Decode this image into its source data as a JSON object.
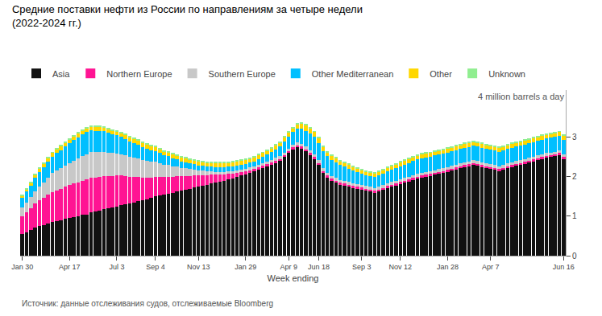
{
  "chart_data": {
    "type": "bar",
    "stacked": true,
    "title": "Средние поставки нефти из России по направлениям за четыре недели",
    "subtitle": "(2022-2024 гг.)",
    "xlabel": "Week ending",
    "annotations": [
      "4 million barrels a day",
      "Источник: данные отслеживания судов, отслеживаемые Bloomberg"
    ],
    "categories": [
      "Jan 30",
      null,
      null,
      null,
      null,
      null,
      null,
      null,
      null,
      null,
      null,
      "Apr 17",
      null,
      null,
      null,
      null,
      null,
      null,
      null,
      null,
      null,
      null,
      "Jul 3",
      null,
      null,
      null,
      null,
      null,
      null,
      null,
      null,
      "Sep 4",
      null,
      null,
      null,
      null,
      null,
      null,
      null,
      null,
      null,
      "Nov 13",
      null,
      null,
      null,
      null,
      null,
      null,
      null,
      null,
      null,
      null,
      "Jan 29",
      null,
      null,
      null,
      null,
      null,
      null,
      null,
      null,
      null,
      "Apr 9",
      null,
      null,
      null,
      null,
      null,
      null,
      "Jun 18",
      null,
      null,
      null,
      null,
      null,
      null,
      null,
      null,
      null,
      "Sep 3",
      null,
      null,
      null,
      null,
      null,
      null,
      null,
      null,
      "Nov 12",
      null,
      null,
      null,
      null,
      null,
      null,
      null,
      null,
      null,
      null,
      "Jan 28",
      null,
      null,
      null,
      null,
      null,
      null,
      null,
      null,
      null,
      "Apr 7",
      null,
      null,
      null,
      null,
      null,
      null,
      null,
      null,
      null,
      null,
      null,
      null,
      null,
      null,
      null,
      null,
      "Jun 16"
    ],
    "series": [
      {
        "name": "Asia",
        "color": "#111111",
        "values": [
          0.55,
          0.6,
          0.65,
          0.72,
          0.75,
          0.78,
          0.82,
          0.85,
          0.88,
          0.9,
          0.93,
          0.95,
          0.98,
          1.0,
          1.03,
          1.05,
          1.1,
          1.12,
          1.15,
          1.18,
          1.2,
          1.22,
          1.25,
          1.28,
          1.3,
          1.32,
          1.35,
          1.38,
          1.4,
          1.43,
          1.46,
          1.5,
          1.53,
          1.55,
          1.58,
          1.6,
          1.63,
          1.65,
          1.68,
          1.7,
          1.73,
          1.75,
          1.78,
          1.8,
          1.83,
          1.85,
          1.88,
          1.9,
          1.93,
          1.96,
          2.0,
          2.03,
          2.06,
          2.1,
          2.14,
          2.18,
          2.22,
          2.26,
          2.3,
          2.35,
          2.4,
          2.5,
          2.6,
          2.7,
          2.75,
          2.72,
          2.65,
          2.55,
          2.45,
          2.3,
          2.1,
          1.98,
          1.9,
          1.85,
          1.8,
          1.78,
          1.75,
          1.72,
          1.7,
          1.68,
          1.65,
          1.63,
          1.6,
          1.63,
          1.67,
          1.72,
          1.75,
          1.78,
          1.82,
          1.85,
          1.88,
          1.92,
          1.95,
          1.98,
          2.0,
          2.02,
          2.05,
          2.08,
          2.1,
          2.13,
          2.16,
          2.19,
          2.22,
          2.25,
          2.27,
          2.3,
          2.28,
          2.25,
          2.22,
          2.2,
          2.18,
          2.15,
          2.18,
          2.22,
          2.25,
          2.28,
          2.3,
          2.33,
          2.36,
          2.39,
          2.42,
          2.45,
          2.48,
          2.5,
          2.52,
          2.55,
          2.45
        ]
      },
      {
        "name": "Northern Europe",
        "color": "#FF1493",
        "values": [
          0.45,
          0.5,
          0.55,
          0.6,
          0.65,
          0.68,
          0.72,
          0.76,
          0.78,
          0.8,
          0.82,
          0.84,
          0.85,
          0.86,
          0.87,
          0.88,
          0.87,
          0.86,
          0.85,
          0.84,
          0.82,
          0.8,
          0.78,
          0.75,
          0.72,
          0.68,
          0.65,
          0.62,
          0.58,
          0.55,
          0.52,
          0.5,
          0.47,
          0.44,
          0.42,
          0.4,
          0.38,
          0.36,
          0.34,
          0.32,
          0.3,
          0.28,
          0.26,
          0.24,
          0.22,
          0.2,
          0.18,
          0.16,
          0.14,
          0.12,
          0.1,
          0.09,
          0.08,
          0.07,
          0.06,
          0.06,
          0.06,
          0.06,
          0.06,
          0.06,
          0.05,
          0.05,
          0.05,
          0.05,
          0.05,
          0.05,
          0.05,
          0.05,
          0.05,
          0.05,
          0.05,
          0.05,
          0.05,
          0.05,
          0.05,
          0.05,
          0.05,
          0.05,
          0.05,
          0.05,
          0.05,
          0.05,
          0.05,
          0.05,
          0.05,
          0.05,
          0.05,
          0.05,
          0.05,
          0.05,
          0.05,
          0.05,
          0.05,
          0.05,
          0.05,
          0.05,
          0.05,
          0.05,
          0.05,
          0.05,
          0.05,
          0.05,
          0.05,
          0.05,
          0.05,
          0.05,
          0.05,
          0.05,
          0.05,
          0.05,
          0.05,
          0.05,
          0.05,
          0.05,
          0.05,
          0.05,
          0.05,
          0.05,
          0.05,
          0.05,
          0.05,
          0.05,
          0.05,
          0.05,
          0.05,
          0.05,
          0.05
        ]
      },
      {
        "name": "Southern Europe",
        "color": "#C8C8C8",
        "values": [
          0.22,
          0.25,
          0.28,
          0.32,
          0.36,
          0.4,
          0.44,
          0.48,
          0.5,
          0.52,
          0.54,
          0.56,
          0.58,
          0.6,
          0.62,
          0.64,
          0.66,
          0.65,
          0.64,
          0.62,
          0.6,
          0.58,
          0.56,
          0.54,
          0.52,
          0.5,
          0.48,
          0.46,
          0.44,
          0.42,
          0.4,
          0.38,
          0.35,
          0.32,
          0.3,
          0.27,
          0.25,
          0.22,
          0.2,
          0.18,
          0.16,
          0.14,
          0.12,
          0.1,
          0.09,
          0.08,
          0.07,
          0.07,
          0.07,
          0.07,
          0.07,
          0.07,
          0.07,
          0.07,
          0.07,
          0.07,
          0.07,
          0.07,
          0.07,
          0.07,
          0.07,
          0.07,
          0.07,
          0.07,
          0.07,
          0.07,
          0.07,
          0.07,
          0.07,
          0.07,
          0.07,
          0.07,
          0.07,
          0.07,
          0.07,
          0.07,
          0.07,
          0.07,
          0.07,
          0.07,
          0.07,
          0.07,
          0.07,
          0.07,
          0.07,
          0.07,
          0.07,
          0.07,
          0.07,
          0.07,
          0.07,
          0.07,
          0.07,
          0.07,
          0.07,
          0.07,
          0.07,
          0.07,
          0.07,
          0.07,
          0.07,
          0.07,
          0.07,
          0.07,
          0.07,
          0.07,
          0.07,
          0.07,
          0.07,
          0.07,
          0.07,
          0.07,
          0.07,
          0.07,
          0.07,
          0.07,
          0.07,
          0.07,
          0.07,
          0.07,
          0.07,
          0.07,
          0.07,
          0.07,
          0.07,
          0.07,
          0.07
        ]
      },
      {
        "name": "Other Mediterranean",
        "color": "#00BFFF",
        "values": [
          0.25,
          0.28,
          0.3,
          0.33,
          0.36,
          0.38,
          0.4,
          0.42,
          0.44,
          0.46,
          0.48,
          0.5,
          0.52,
          0.54,
          0.55,
          0.56,
          0.55,
          0.54,
          0.53,
          0.52,
          0.5,
          0.48,
          0.46,
          0.44,
          0.42,
          0.4,
          0.38,
          0.36,
          0.34,
          0.32,
          0.3,
          0.28,
          0.26,
          0.24,
          0.22,
          0.2,
          0.18,
          0.16,
          0.15,
          0.14,
          0.13,
          0.12,
          0.12,
          0.12,
          0.12,
          0.12,
          0.12,
          0.12,
          0.12,
          0.12,
          0.12,
          0.12,
          0.12,
          0.12,
          0.12,
          0.14,
          0.16,
          0.18,
          0.2,
          0.22,
          0.25,
          0.28,
          0.3,
          0.32,
          0.35,
          0.38,
          0.4,
          0.42,
          0.44,
          0.44,
          0.43,
          0.42,
          0.41,
          0.4,
          0.38,
          0.36,
          0.34,
          0.32,
          0.3,
          0.28,
          0.27,
          0.27,
          0.27,
          0.28,
          0.29,
          0.3,
          0.31,
          0.32,
          0.33,
          0.34,
          0.35,
          0.36,
          0.37,
          0.37,
          0.37,
          0.37,
          0.37,
          0.37,
          0.37,
          0.37,
          0.37,
          0.37,
          0.37,
          0.37,
          0.37,
          0.37,
          0.37,
          0.37,
          0.37,
          0.37,
          0.37,
          0.37,
          0.37,
          0.37,
          0.37,
          0.37,
          0.37,
          0.37,
          0.37,
          0.37,
          0.37,
          0.37,
          0.37,
          0.37,
          0.37,
          0.37,
          0.37
        ]
      },
      {
        "name": "Other",
        "color": "#FFD700",
        "values": [
          0.05,
          0.06,
          0.07,
          0.08,
          0.09,
          0.1,
          0.1,
          0.1,
          0.1,
          0.1,
          0.1,
          0.1,
          0.1,
          0.1,
          0.1,
          0.1,
          0.1,
          0.1,
          0.1,
          0.1,
          0.1,
          0.1,
          0.1,
          0.1,
          0.1,
          0.1,
          0.1,
          0.1,
          0.1,
          0.1,
          0.1,
          0.1,
          0.1,
          0.1,
          0.1,
          0.1,
          0.1,
          0.1,
          0.1,
          0.1,
          0.1,
          0.1,
          0.1,
          0.1,
          0.1,
          0.1,
          0.1,
          0.1,
          0.1,
          0.1,
          0.1,
          0.1,
          0.1,
          0.1,
          0.1,
          0.1,
          0.1,
          0.1,
          0.1,
          0.1,
          0.1,
          0.1,
          0.1,
          0.1,
          0.12,
          0.13,
          0.14,
          0.14,
          0.13,
          0.12,
          0.11,
          0.1,
          0.1,
          0.1,
          0.1,
          0.1,
          0.1,
          0.1,
          0.1,
          0.1,
          0.1,
          0.1,
          0.1,
          0.1,
          0.1,
          0.1,
          0.1,
          0.1,
          0.1,
          0.1,
          0.1,
          0.1,
          0.1,
          0.1,
          0.1,
          0.1,
          0.1,
          0.1,
          0.1,
          0.1,
          0.1,
          0.1,
          0.1,
          0.1,
          0.1,
          0.1,
          0.1,
          0.1,
          0.1,
          0.1,
          0.1,
          0.1,
          0.1,
          0.1,
          0.1,
          0.1,
          0.1,
          0.1,
          0.1,
          0.1,
          0.1,
          0.1,
          0.1,
          0.1,
          0.1,
          0.1,
          0.1
        ]
      },
      {
        "name": "Unknown",
        "color": "#90EE90",
        "values": [
          0.02,
          0.02,
          0.02,
          0.02,
          0.02,
          0.02,
          0.02,
          0.02,
          0.02,
          0.02,
          0.02,
          0.02,
          0.02,
          0.02,
          0.02,
          0.02,
          0.02,
          0.02,
          0.02,
          0.02,
          0.02,
          0.02,
          0.02,
          0.02,
          0.02,
          0.02,
          0.02,
          0.02,
          0.02,
          0.02,
          0.02,
          0.02,
          0.02,
          0.02,
          0.02,
          0.02,
          0.02,
          0.02,
          0.02,
          0.02,
          0.02,
          0.02,
          0.02,
          0.02,
          0.02,
          0.02,
          0.02,
          0.02,
          0.02,
          0.02,
          0.02,
          0.02,
          0.02,
          0.02,
          0.02,
          0.02,
          0.02,
          0.02,
          0.02,
          0.02,
          0.02,
          0.02,
          0.02,
          0.02,
          0.02,
          0.02,
          0.02,
          0.02,
          0.02,
          0.02,
          0.02,
          0.02,
          0.02,
          0.02,
          0.02,
          0.02,
          0.02,
          0.02,
          0.02,
          0.02,
          0.02,
          0.02,
          0.02,
          0.02,
          0.02,
          0.02,
          0.02,
          0.02,
          0.02,
          0.02,
          0.02,
          0.02,
          0.02,
          0.02,
          0.02,
          0.02,
          0.02,
          0.02,
          0.02,
          0.02,
          0.02,
          0.02,
          0.02,
          0.02,
          0.02,
          0.02,
          0.02,
          0.02,
          0.02,
          0.02,
          0.02,
          0.02,
          0.02,
          0.02,
          0.02,
          0.02,
          0.02,
          0.02,
          0.02,
          0.02,
          0.02,
          0.02,
          0.02,
          0.02,
          0.02,
          0.02,
          0.02
        ]
      }
    ],
    "ylim": [
      0,
      4.2
    ],
    "yticks": [
      0,
      1,
      2,
      3
    ],
    "grid": false,
    "legend": "top"
  }
}
